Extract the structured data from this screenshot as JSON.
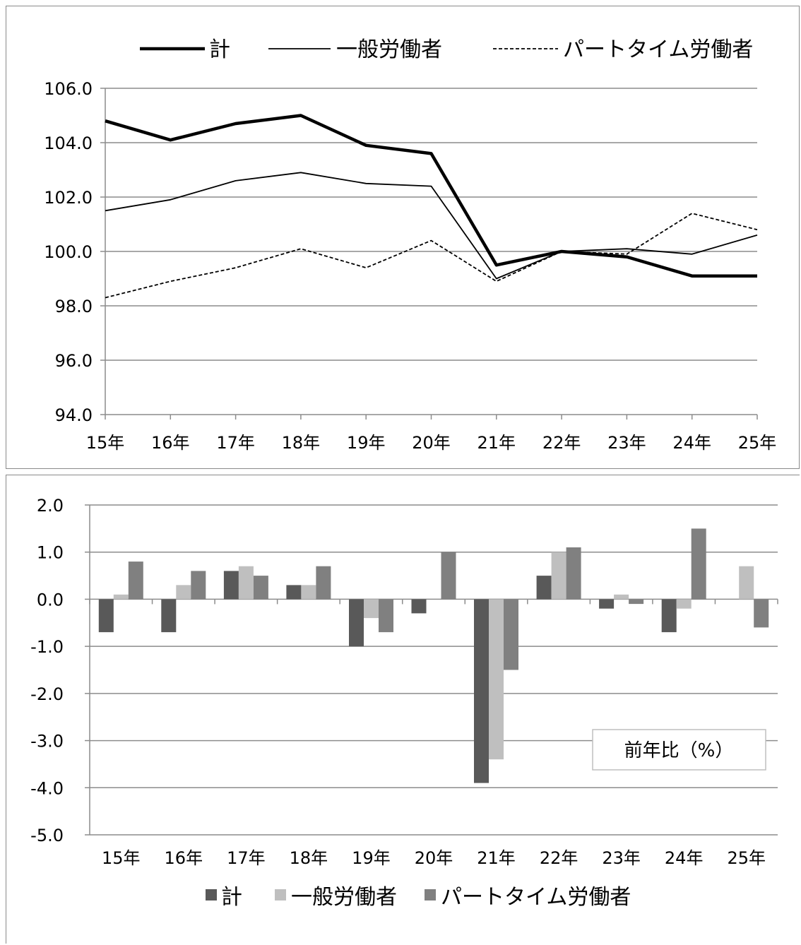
{
  "chart_data": [
    {
      "type": "line",
      "categories": [
        "15年",
        "16年",
        "17年",
        "18年",
        "19年",
        "20年",
        "21年",
        "22年",
        "23年",
        "24年",
        "25年"
      ],
      "series": [
        {
          "name": "計",
          "style": "thick-solid",
          "color": "#000000",
          "values": [
            104.8,
            104.1,
            104.7,
            105.0,
            103.9,
            103.6,
            99.5,
            100.0,
            99.8,
            99.1,
            99.1
          ]
        },
        {
          "name": "一般労働者",
          "style": "thin-solid",
          "color": "#000000",
          "values": [
            101.5,
            101.9,
            102.6,
            102.9,
            102.5,
            102.4,
            99.0,
            100.0,
            100.1,
            99.9,
            100.6
          ]
        },
        {
          "name": "パートタイム労働者",
          "style": "dashed",
          "color": "#000000",
          "values": [
            98.3,
            98.9,
            99.4,
            100.1,
            99.4,
            100.4,
            98.9,
            100.0,
            99.9,
            101.4,
            100.8
          ]
        }
      ],
      "ylim": [
        94.0,
        106.0
      ],
      "yticks": [
        "94.0",
        "96.0",
        "98.0",
        "100.0",
        "102.0",
        "104.0",
        "106.0"
      ],
      "grid": true,
      "legend_position": "top"
    },
    {
      "type": "bar",
      "categories": [
        "15年",
        "16年",
        "17年",
        "18年",
        "19年",
        "20年",
        "21年",
        "22年",
        "23年",
        "24年",
        "25年"
      ],
      "series": [
        {
          "name": "計",
          "color": "#595959",
          "values": [
            -0.7,
            -0.7,
            0.6,
            0.3,
            -1.0,
            -0.3,
            -3.9,
            0.5,
            -0.2,
            -0.7,
            0.0
          ]
        },
        {
          "name": "一般労働者",
          "color": "#bfbfbf",
          "values": [
            0.1,
            0.3,
            0.7,
            0.3,
            -0.4,
            0.0,
            -3.4,
            1.0,
            0.1,
            -0.2,
            0.7
          ]
        },
        {
          "name": "パートタイム労働者",
          "color": "#808080",
          "values": [
            0.8,
            0.6,
            0.5,
            0.7,
            -0.7,
            1.0,
            -1.5,
            1.1,
            -0.1,
            1.5,
            -0.6
          ]
        }
      ],
      "ylim": [
        -5.0,
        2.0
      ],
      "yticks": [
        "-5.0",
        "-4.0",
        "-3.0",
        "-2.0",
        "-1.0",
        "0.0",
        "1.0",
        "2.0"
      ],
      "grid": true,
      "legend_position": "bottom",
      "annotation": "前年比（%）"
    }
  ]
}
